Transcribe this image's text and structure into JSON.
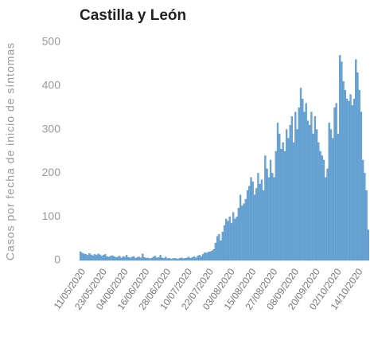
{
  "chart_data": {
    "type": "bar",
    "title": "Castilla y León",
    "ylabel": "Casos por fecha de inicio de síntomas",
    "categories": [
      "11/05/2020",
      null,
      null,
      null,
      null,
      null,
      null,
      null,
      null,
      null,
      null,
      null,
      "23/05/2020",
      null,
      null,
      null,
      null,
      null,
      null,
      null,
      null,
      null,
      null,
      null,
      "04/06/2020",
      null,
      null,
      null,
      null,
      null,
      null,
      null,
      null,
      null,
      null,
      null,
      "16/06/2020",
      null,
      null,
      null,
      null,
      null,
      null,
      null,
      null,
      null,
      null,
      null,
      "28/06/2020",
      null,
      null,
      null,
      null,
      null,
      null,
      null,
      null,
      null,
      null,
      null,
      "10/07/2020",
      null,
      null,
      null,
      null,
      null,
      null,
      null,
      null,
      null,
      null,
      null,
      "22/07/2020",
      null,
      null,
      null,
      null,
      null,
      null,
      null,
      null,
      null,
      null,
      null,
      "03/08/2020",
      null,
      null,
      null,
      null,
      null,
      null,
      null,
      null,
      null,
      null,
      null,
      "15/08/2020",
      null,
      null,
      null,
      null,
      null,
      null,
      null,
      null,
      null,
      null,
      null,
      "27/08/2020",
      null,
      null,
      null,
      null,
      null,
      null,
      null,
      null,
      null,
      null,
      null,
      "08/09/2020",
      null,
      null,
      null,
      null,
      null,
      null,
      null,
      null,
      null,
      null,
      null,
      "20/09/2020",
      null,
      null,
      null,
      null,
      null,
      null,
      null,
      null,
      null,
      null,
      null,
      "02/10/2020",
      null,
      null,
      null,
      null,
      null,
      null,
      null,
      null,
      null,
      null,
      null,
      "14/10/2020",
      null,
      null,
      null,
      null,
      null,
      null
    ],
    "values": [
      20,
      17,
      15,
      14,
      12,
      16,
      13,
      11,
      14,
      12,
      15,
      13,
      10,
      12,
      14,
      9,
      8,
      10,
      11,
      9,
      7,
      8,
      10,
      6,
      9,
      8,
      12,
      7,
      6,
      8,
      9,
      5,
      7,
      8,
      6,
      15,
      7,
      5,
      6,
      4,
      5,
      8,
      10,
      6,
      7,
      12,
      6,
      5,
      8,
      4,
      5,
      3,
      4,
      5,
      4,
      3,
      5,
      6,
      4,
      5,
      6,
      8,
      5,
      7,
      9,
      6,
      10,
      12,
      9,
      14,
      18,
      17,
      19,
      20,
      22,
      25,
      40,
      55,
      60,
      45,
      65,
      80,
      95,
      90,
      100,
      85,
      110,
      95,
      100,
      120,
      150,
      125,
      130,
      140,
      160,
      170,
      190,
      180,
      150,
      165,
      200,
      175,
      185,
      160,
      240,
      210,
      190,
      230,
      200,
      190,
      250,
      315,
      290,
      255,
      270,
      250,
      300,
      280,
      310,
      330,
      270,
      340,
      300,
      350,
      395,
      370,
      340,
      360,
      320,
      310,
      340,
      290,
      330,
      300,
      270,
      250,
      240,
      230,
      190,
      210,
      315,
      300,
      280,
      350,
      360,
      290,
      470,
      455,
      410,
      390,
      370,
      365,
      380,
      355,
      370,
      460,
      430,
      390,
      340,
      230,
      200,
      160,
      70
    ],
    "color": "#6aa6d6",
    "ylim": [
      0,
      500
    ],
    "yticks": [
      0,
      100,
      200,
      300,
      400,
      500
    ],
    "grid": false
  }
}
